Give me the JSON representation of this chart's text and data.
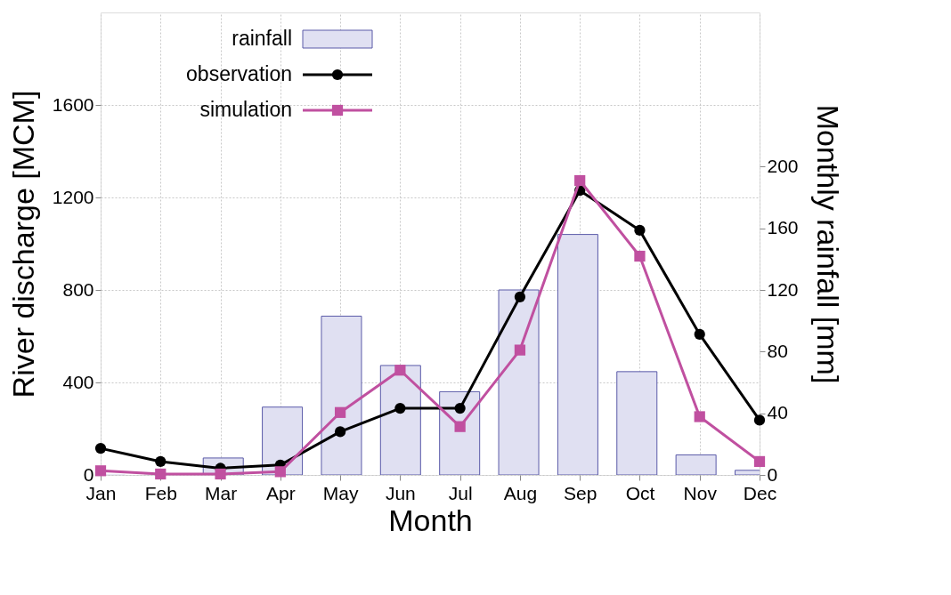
{
  "chart_data": {
    "type": "line",
    "xlabel": "Month",
    "ylabel": "River discharge [MCM]",
    "y2label": "Monthly rainfall [mm]",
    "categories": [
      "Jan",
      "Feb",
      "Mar",
      "Apr",
      "May",
      "Jun",
      "Jul",
      "Aug",
      "Sep",
      "Oct",
      "Nov",
      "Dec"
    ],
    "series": [
      {
        "name": "rainfall",
        "type": "bar",
        "axis": "y2",
        "color": "#e0e0f2",
        "values": [
          0,
          0,
          11,
          44,
          103,
          71,
          54,
          120,
          156,
          67,
          13,
          3
        ]
      },
      {
        "name": "observation",
        "marker": "circle",
        "color": "#000000",
        "values": [
          115,
          58,
          29,
          43,
          187,
          288,
          288,
          770,
          1230,
          1058,
          608,
          237
        ]
      },
      {
        "name": "simulation",
        "marker": "square",
        "color": "#c050a0",
        "values": [
          18,
          4,
          4,
          14,
          270,
          453,
          209,
          540,
          1273,
          946,
          252,
          58
        ]
      }
    ],
    "ylim": [
      0,
      2000
    ],
    "yticks": [
      0,
      400,
      800,
      1200,
      1600
    ],
    "y2lim": [
      0,
      300
    ],
    "y2ticks": [
      0,
      40,
      80,
      120,
      160,
      200
    ],
    "grid": true,
    "legend": "top left"
  }
}
